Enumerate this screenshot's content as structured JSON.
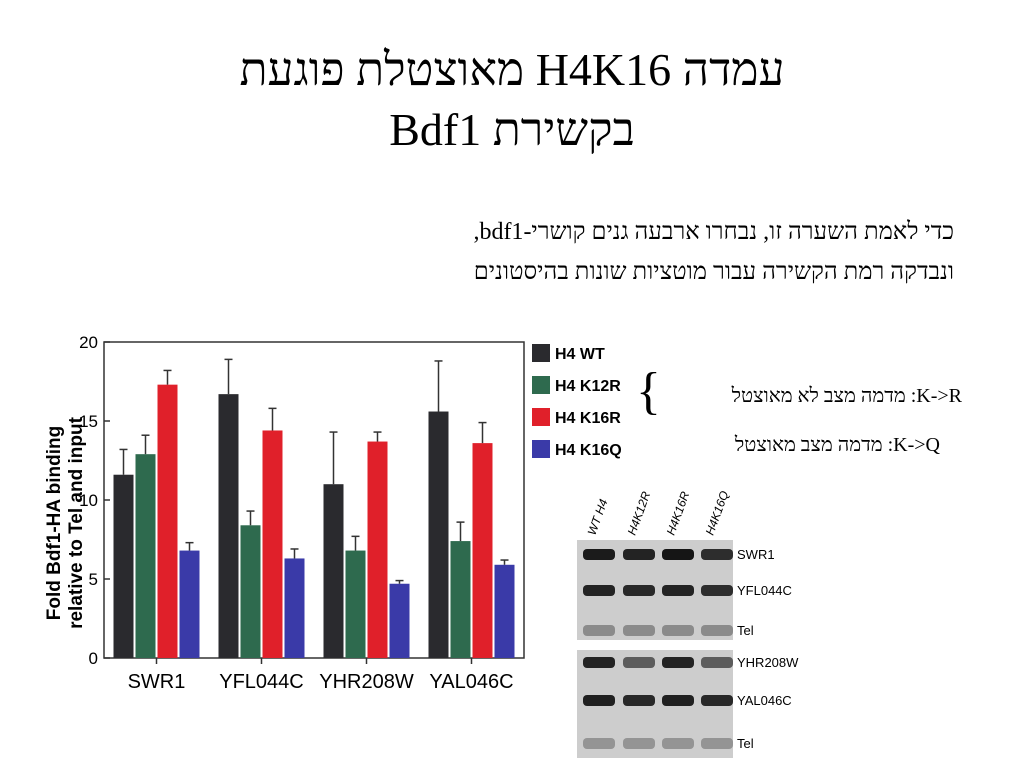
{
  "slide": {
    "title_line1": "עמדה H4K16 מאוצטלת פוגעת",
    "title_line2": "בקשירת Bdf1",
    "body_line1": "כדי לאמת השערה זו, נבחרו ארבעה גנים קושרי-bdf1,",
    "body_line2": "ונבדקה רמת הקשירה עבור מוטציות שונות בהיסטונים",
    "note_kr": "K->R: מדמה מצב לא מאוצטל",
    "note_kq": "K->Q: מדמה מצב מאוצטל",
    "brace": "{"
  },
  "chart_data": {
    "type": "bar",
    "ylabel_line1": "Fold Bdf1-HA binding",
    "ylabel_line2": "relative to Tel and input",
    "ylim": [
      0,
      20
    ],
    "yticks": [
      "0",
      "5",
      "10",
      "15",
      "20"
    ],
    "categories": [
      "SWR1",
      "YFL044C",
      "YHR208W",
      "YAL046C"
    ],
    "series": [
      {
        "name": "H4 WT",
        "color": "#2a2a2e",
        "values": [
          11.6,
          16.7,
          11.0,
          15.6
        ],
        "errors": [
          1.6,
          2.2,
          3.3,
          3.2
        ]
      },
      {
        "name": "H4 K12R",
        "color": "#2e6a4e",
        "values": [
          12.9,
          8.4,
          6.8,
          7.4
        ],
        "errors": [
          1.2,
          0.9,
          0.9,
          1.2
        ]
      },
      {
        "name": "H4 K16R",
        "color": "#e0202a",
        "values": [
          17.3,
          14.4,
          13.7,
          13.6
        ],
        "errors": [
          0.9,
          1.4,
          0.6,
          1.3
        ]
      },
      {
        "name": "H4 K16Q",
        "color": "#3a3aa8",
        "values": [
          6.8,
          6.3,
          4.7,
          5.9
        ],
        "errors": [
          0.5,
          0.6,
          0.2,
          0.3
        ]
      }
    ],
    "grid": false,
    "legend_position": "right"
  },
  "gel": {
    "lanes": [
      "WT H4",
      "H4K12R",
      "H4K16R",
      "H4K16Q"
    ],
    "panel1_rows": [
      "SWR1",
      "YFL044C",
      "Tel"
    ],
    "panel2_rows": [
      "YHR208W",
      "YAL046C",
      "Tel"
    ]
  }
}
